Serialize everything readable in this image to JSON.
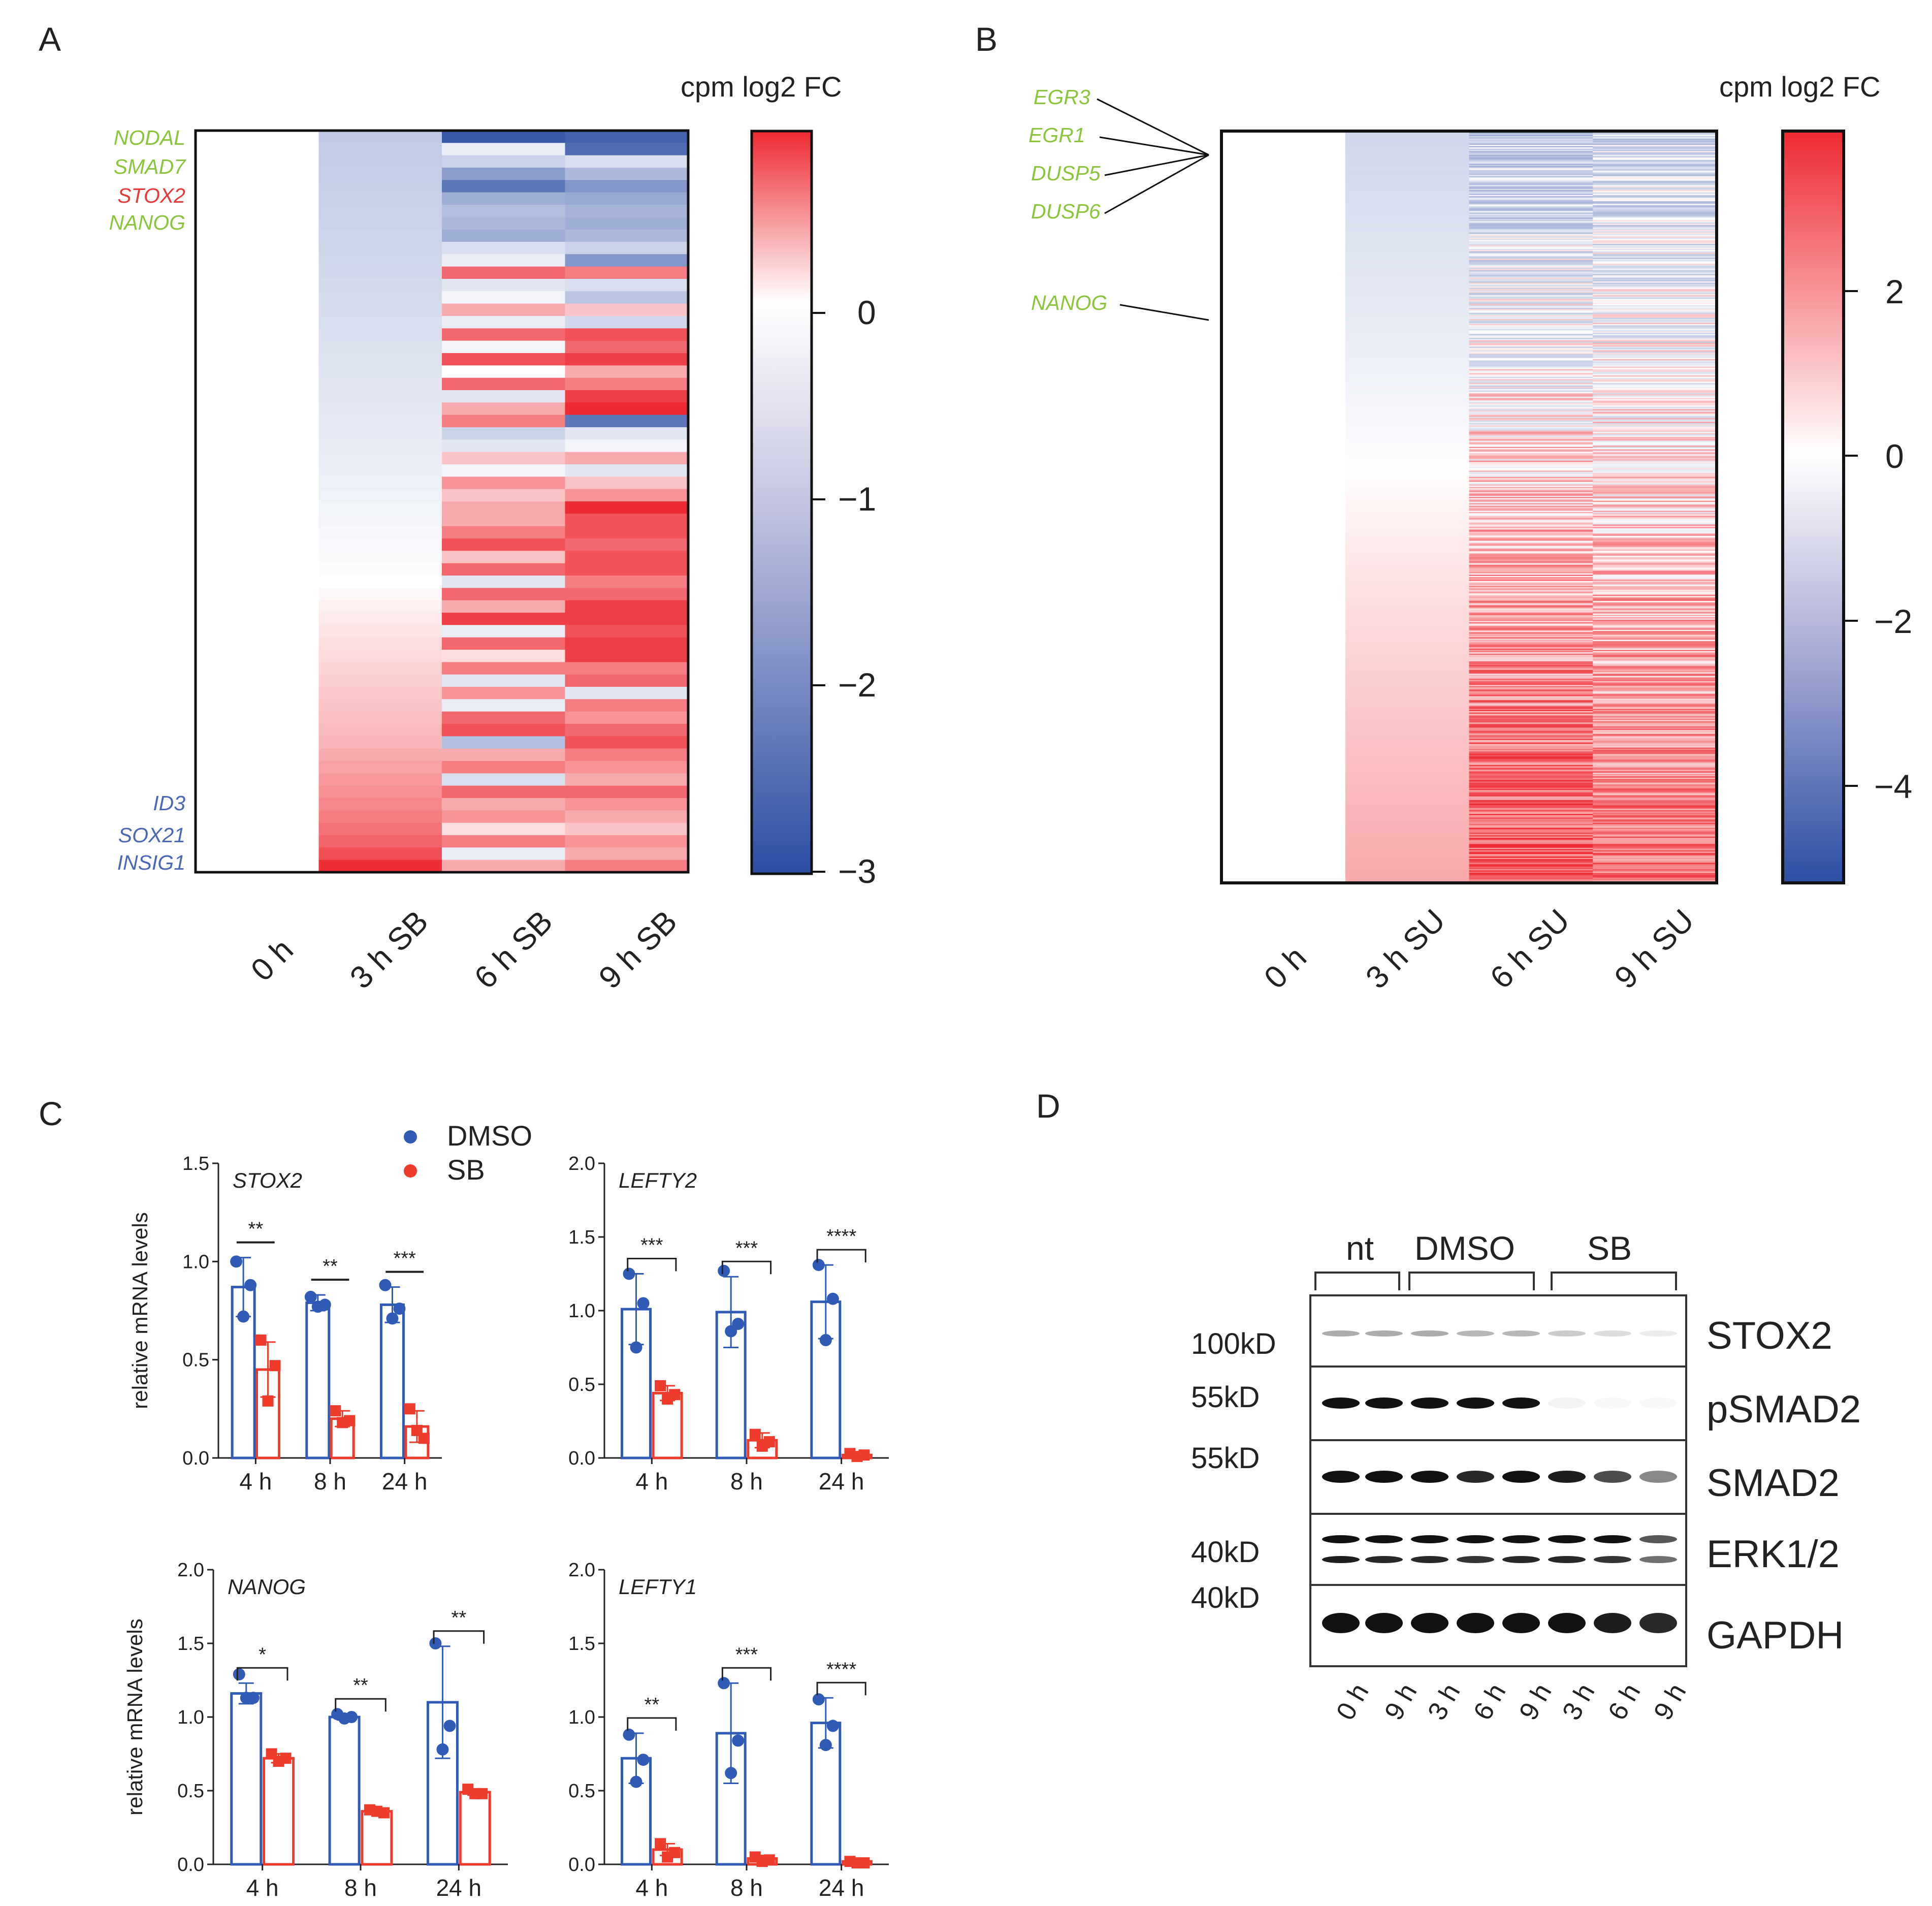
{
  "panels": {
    "a": "A",
    "b": "B",
    "c": "C",
    "d": "D"
  },
  "colors": {
    "green_gene": "#8cc43c",
    "red_gene": "#e83a3a",
    "blue_gene": "#4a68b5",
    "dmso": "#2f5bb7",
    "sb": "#ef3b2c",
    "heat_neg": "#2c4ea3",
    "heat_mid": "#ffffff",
    "heat_pos": "#ee2a32"
  },
  "chart_data": [
    {
      "id": "heatmapA",
      "type": "heatmap",
      "title": "cpm log2 FC",
      "columns": [
        "0 h",
        "3 h SB",
        "6 h SB",
        "9 h SB"
      ],
      "color_range": [
        -3,
        0.9
      ],
      "colorbar_ticks": [
        0,
        -1,
        -2,
        -3
      ],
      "colorbar_tick_labels": [
        "0",
        "−1",
        "−2",
        "−3"
      ],
      "row_count": 60,
      "rows_col2": [
        -0.72,
        -0.7,
        -0.68,
        -0.66,
        -0.64,
        -0.62,
        -0.6,
        -0.58,
        -0.56,
        -0.54,
        -0.52,
        -0.5,
        -0.48,
        -0.46,
        -0.44,
        -0.42,
        -0.4,
        -0.38,
        -0.36,
        -0.34,
        -0.32,
        -0.3,
        -0.28,
        -0.26,
        -0.24,
        -0.22,
        -0.2,
        -0.18,
        -0.16,
        -0.14,
        -0.12,
        -0.1,
        -0.08,
        -0.06,
        -0.04,
        -0.02,
        0,
        0.02,
        0.04,
        0.06,
        0.08,
        0.1,
        0.12,
        0.14,
        0.16,
        0.18,
        0.2,
        0.22,
        0.24,
        0.26,
        0.3,
        0.34,
        0.38,
        0.42,
        0.46,
        0.5,
        0.56,
        0.62,
        0.72,
        0.88
      ],
      "rows_col3": [
        -2.8,
        -0.2,
        -0.6,
        -1.5,
        -2.2,
        -1.2,
        -0.9,
        -1.0,
        -1.2,
        -0.4,
        -0.2,
        0.6,
        -0.3,
        -0.1,
        0.3,
        -0.2,
        0.6,
        -0.1,
        0.7,
        0.0,
        0.6,
        -0.3,
        0.3,
        0.5,
        -0.6,
        -0.3,
        0.2,
        -0.1,
        0.4,
        0.2,
        0.3,
        0.3,
        0.5,
        0.7,
        0.2,
        0.6,
        -0.3,
        0.6,
        0.3,
        0.8,
        -0.2,
        0.6,
        0.1,
        0.5,
        -0.3,
        0.4,
        -0.2,
        0.6,
        0.7,
        -0.9,
        0.3,
        0.5,
        -0.4,
        0.6,
        0.3,
        0.4,
        0.1,
        0.5,
        -0.2,
        0.3
      ],
      "rows_col4": [
        -2.6,
        -2.4,
        -0.4,
        -1.0,
        -1.6,
        -1.3,
        -1.1,
        -1.2,
        -1.0,
        -0.6,
        -1.6,
        0.5,
        -0.4,
        -0.8,
        0.2,
        -0.5,
        0.7,
        0.6,
        0.8,
        0.3,
        0.5,
        0.8,
        0.9,
        -2.2,
        -0.3,
        -0.1,
        0.3,
        -0.3,
        0.2,
        0.4,
        0.9,
        0.7,
        0.7,
        0.6,
        0.7,
        0.7,
        0.5,
        0.6,
        0.8,
        0.8,
        0.7,
        0.8,
        0.8,
        0.5,
        0.6,
        -0.3,
        0.5,
        0.4,
        0.6,
        0.7,
        0.5,
        0.4,
        0.3,
        0.6,
        0.4,
        0.3,
        0.2,
        0.4,
        0.3,
        0.5
      ],
      "genes_top": [
        "NODAL",
        "SMAD7",
        "STOX2",
        "NANOG"
      ],
      "genes_bottom": [
        "ID3",
        "SOX21",
        "INSIG1"
      ]
    },
    {
      "id": "heatmapB",
      "type": "heatmap",
      "title": "cpm log2 FC",
      "columns": [
        "0 h",
        "3 h SU",
        "6 h SU",
        "9 h SU"
      ],
      "color_range": [
        -5.2,
        3.9
      ],
      "colorbar_ticks": [
        2,
        0,
        -2,
        -4
      ],
      "colorbar_tick_labels": [
        "2",
        "0",
        "−2",
        "−4"
      ],
      "row_count": 600,
      "genes": [
        "EGR3",
        "EGR1",
        "DUSP5",
        "DUSP6",
        "NANOG"
      ]
    },
    {
      "id": "barStox2",
      "type": "bar",
      "title": "STOX2",
      "ylabel": "relative mRNA levels",
      "categories": [
        "4 h",
        "8 h",
        "24 h"
      ],
      "ylim": [
        0,
        1.5
      ],
      "yticks": [
        "0.0",
        "0.5",
        "1.0",
        "1.5"
      ],
      "series": [
        {
          "name": "DMSO",
          "values": [
            0.87,
            0.79,
            0.78
          ],
          "error": [
            0.15,
            0.04,
            0.09
          ],
          "points": [
            [
              1.0,
              0.72,
              0.88
            ],
            [
              0.82,
              0.77,
              0.78
            ],
            [
              0.88,
              0.71,
              0.76
            ]
          ]
        },
        {
          "name": "SB",
          "values": [
            0.45,
            0.2,
            0.16
          ],
          "error": [
            0.14,
            0.04,
            0.08
          ],
          "points": [
            [
              0.6,
              0.29,
              0.47
            ],
            [
              0.24,
              0.18,
              0.19
            ],
            [
              0.25,
              0.14,
              0.1
            ]
          ]
        }
      ],
      "significance": [
        "**",
        "**",
        "***"
      ],
      "sig_style": "line"
    },
    {
      "id": "barLefty2",
      "type": "bar",
      "title": "LEFTY2",
      "ylabel": "",
      "categories": [
        "4 h",
        "8 h",
        "24 h"
      ],
      "ylim": [
        0,
        2.0
      ],
      "yticks": [
        "0.0",
        "0.5",
        "1.0",
        "1.5",
        "2.0"
      ],
      "series": [
        {
          "name": "DMSO",
          "values": [
            1.01,
            0.99,
            1.06
          ],
          "error": [
            0.24,
            0.24,
            0.25
          ],
          "points": [
            [
              1.25,
              0.75,
              1.05
            ],
            [
              1.27,
              0.86,
              0.91
            ],
            [
              1.31,
              0.8,
              1.08
            ]
          ]
        },
        {
          "name": "SB",
          "values": [
            0.44,
            0.12,
            0.02
          ],
          "error": [
            0.05,
            0.05,
            0.02
          ],
          "points": [
            [
              0.49,
              0.4,
              0.43
            ],
            [
              0.16,
              0.08,
              0.11
            ],
            [
              0.03,
              0.01,
              0.02
            ]
          ]
        }
      ],
      "significance": [
        "***",
        "***",
        "****"
      ],
      "sig_style": "bracket"
    },
    {
      "id": "barNanog",
      "type": "bar",
      "title": "NANOG",
      "ylabel": "relative mRNA levels",
      "categories": [
        "4 h",
        "8 h",
        "24 h"
      ],
      "ylim": [
        0,
        2.0
      ],
      "yticks": [
        "0.0",
        "0.5",
        "1.0",
        "1.5",
        "2.0"
      ],
      "series": [
        {
          "name": "DMSO",
          "values": [
            1.16,
            1.0,
            1.1
          ],
          "error": [
            0.07,
            0.02,
            0.38
          ],
          "points": [
            [
              1.29,
              1.13,
              1.13
            ],
            [
              1.02,
              0.99,
              1.0
            ],
            [
              1.5,
              0.78,
              0.94
            ]
          ]
        },
        {
          "name": "SB",
          "values": [
            0.72,
            0.36,
            0.49
          ],
          "error": [
            0.03,
            0.01,
            0.02
          ],
          "points": [
            [
              0.75,
              0.7,
              0.72
            ],
            [
              0.37,
              0.36,
              0.35
            ],
            [
              0.51,
              0.48,
              0.48
            ]
          ]
        }
      ],
      "significance": [
        "*",
        "**",
        "**"
      ],
      "sig_style": "bracket"
    },
    {
      "id": "barLefty1",
      "type": "bar",
      "title": "LEFTY1",
      "ylabel": "",
      "categories": [
        "4 h",
        "8 h",
        "24 h"
      ],
      "ylim": [
        0,
        2.0
      ],
      "yticks": [
        "0.0",
        "0.5",
        "1.0",
        "1.5",
        "2.0"
      ],
      "series": [
        {
          "name": "DMSO",
          "values": [
            0.72,
            0.89,
            0.96
          ],
          "error": [
            0.17,
            0.34,
            0.17
          ],
          "points": [
            [
              0.88,
              0.56,
              0.71
            ],
            [
              1.23,
              0.62,
              0.84
            ],
            [
              1.12,
              0.81,
              0.94
            ]
          ]
        },
        {
          "name": "SB",
          "values": [
            0.1,
            0.04,
            0.02
          ],
          "error": [
            0.04,
            0.02,
            0.01
          ],
          "points": [
            [
              0.14,
              0.05,
              0.08
            ],
            [
              0.05,
              0.02,
              0.03
            ],
            [
              0.02,
              0.01,
              0.01
            ]
          ]
        }
      ],
      "significance": [
        "**",
        "***",
        "****"
      ],
      "sig_style": "bracket"
    }
  ],
  "legend": {
    "dmso": "DMSO",
    "sb": "SB"
  },
  "western": {
    "groups": [
      "nt",
      "DMSO",
      "SB"
    ],
    "lanes": [
      "0 h",
      "9 h",
      "3 h",
      "6 h",
      "9 h",
      "3 h",
      "6 h",
      "9 h"
    ],
    "sizes": [
      "100kD",
      "55kD",
      "55kD",
      "40kD",
      "40kD"
    ],
    "proteins": [
      "STOX2",
      "pSMAD2",
      "SMAD2",
      "ERK1/2",
      "GAPDH"
    ]
  }
}
